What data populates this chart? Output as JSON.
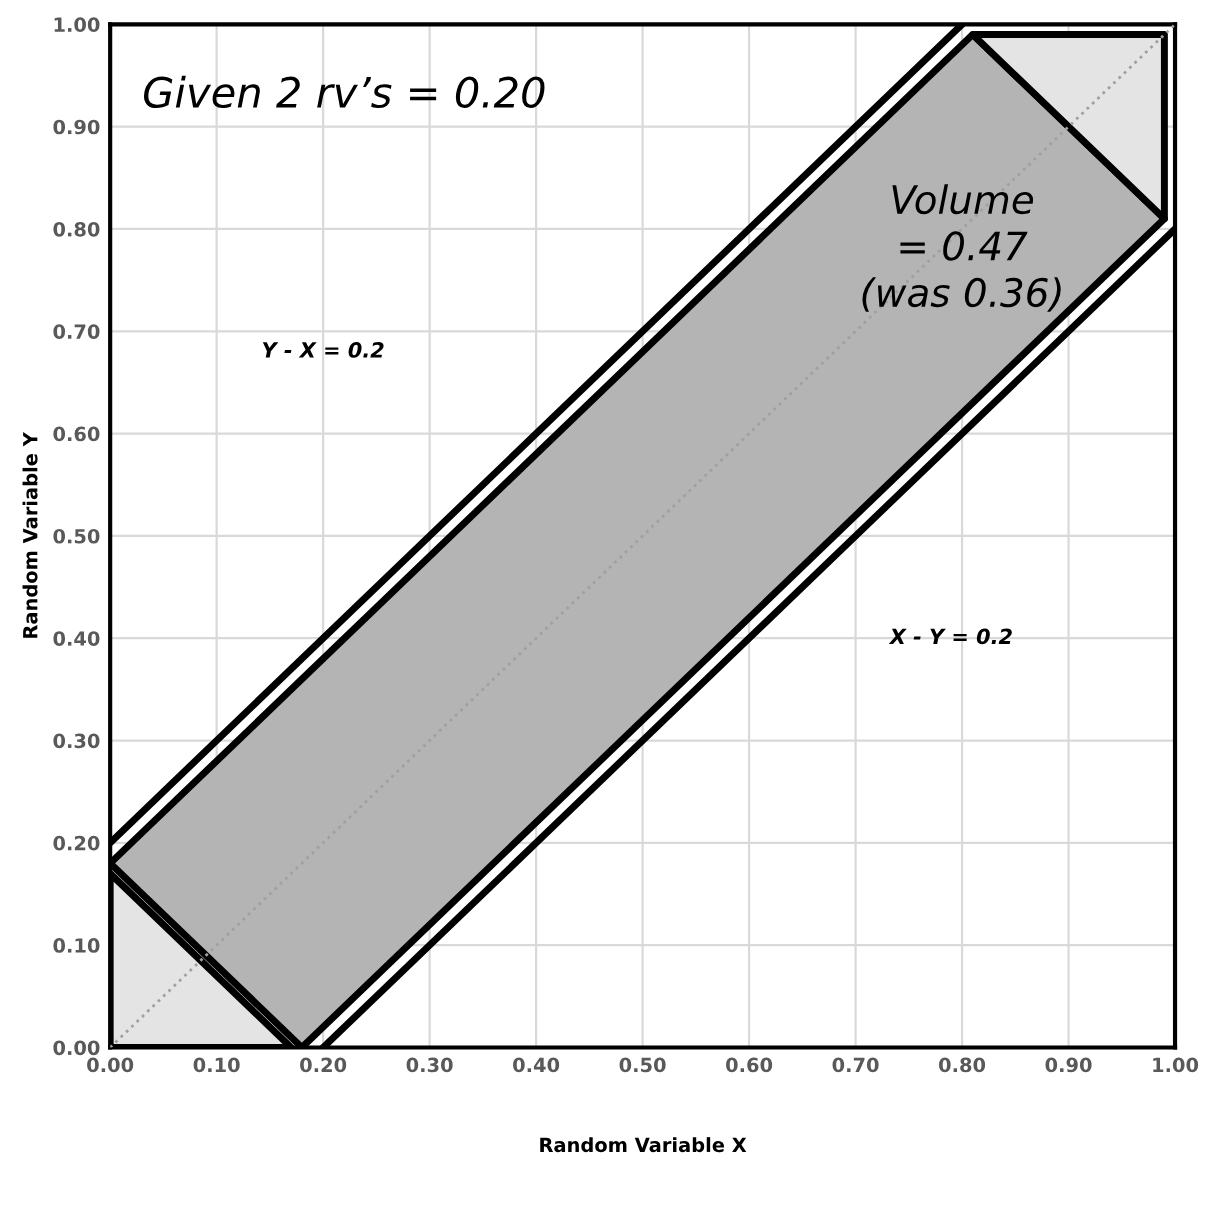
{
  "chart_data": {
    "type": "line",
    "xlabel": "Random Variable X",
    "ylabel": "Random Variable Y",
    "annotations": [
      "Given 2 rv’s = 0.20",
      "Volume\n= 0.47\n(was 0.36)",
      "Y - X = 0.2",
      "X - Y = 0.2"
    ],
    "series": [
      {
        "type": "area",
        "color": "#b4b4b4",
        "x": [
          0,
          0.18,
          0.99,
          0.81,
          0
        ],
        "values": [
          0.18,
          0,
          0.81,
          0.99,
          0.18
        ]
      },
      {
        "type": "area",
        "color": "#e4e4e4",
        "x": [
          0,
          0,
          0.17,
          0
        ],
        "values": [
          0.17,
          0,
          0,
          0.17
        ]
      },
      {
        "type": "area",
        "color": "#e4e4e4",
        "x": [
          0.81,
          0.99,
          0.99,
          0.81
        ],
        "values": [
          0.99,
          0.99,
          0.81,
          0.99
        ]
      },
      {
        "color": "#000000",
        "x": [
          0,
          0.8
        ],
        "values": [
          0.2,
          1.0
        ]
      },
      {
        "color": "#000000",
        "x": [
          0.2,
          1.0
        ],
        "values": [
          0,
          0.8
        ]
      },
      {
        "color": "#a0a0a0",
        "line_style": "dotted",
        "x": [
          0,
          1
        ],
        "values": [
          0,
          1
        ]
      }
    ],
    "xlim": [
      0,
      1
    ],
    "ylim": [
      0,
      1
    ],
    "xticks": [
      {
        "value": 0,
        "label": "0.00"
      },
      {
        "value": 0.1,
        "label": "0.10"
      },
      {
        "value": 0.2,
        "label": "0.20"
      },
      {
        "value": 0.3,
        "label": "0.30"
      },
      {
        "value": 0.4,
        "label": "0.40"
      },
      {
        "value": 0.5,
        "label": "0.50"
      },
      {
        "value": 0.6,
        "label": "0.60"
      },
      {
        "value": 0.7,
        "label": "0.70"
      },
      {
        "value": 0.8,
        "label": "0.80"
      },
      {
        "value": 0.9,
        "label": "0.90"
      },
      {
        "value": 1,
        "label": "1.00"
      }
    ],
    "yticks": [
      {
        "value": 0,
        "label": "0.00"
      },
      {
        "value": 0.1,
        "label": "0.10"
      },
      {
        "value": 0.2,
        "label": "0.20"
      },
      {
        "value": 0.3,
        "label": "0.30"
      },
      {
        "value": 0.4,
        "label": "0.40"
      },
      {
        "value": 0.5,
        "label": "0.50"
      },
      {
        "value": 0.6,
        "label": "0.60"
      },
      {
        "value": 0.7,
        "label": "0.70"
      },
      {
        "value": 0.8,
        "label": "0.80"
      },
      {
        "value": 0.9,
        "label": "0.90"
      },
      {
        "value": 1,
        "label": "1.00"
      }
    ],
    "grid": true
  }
}
